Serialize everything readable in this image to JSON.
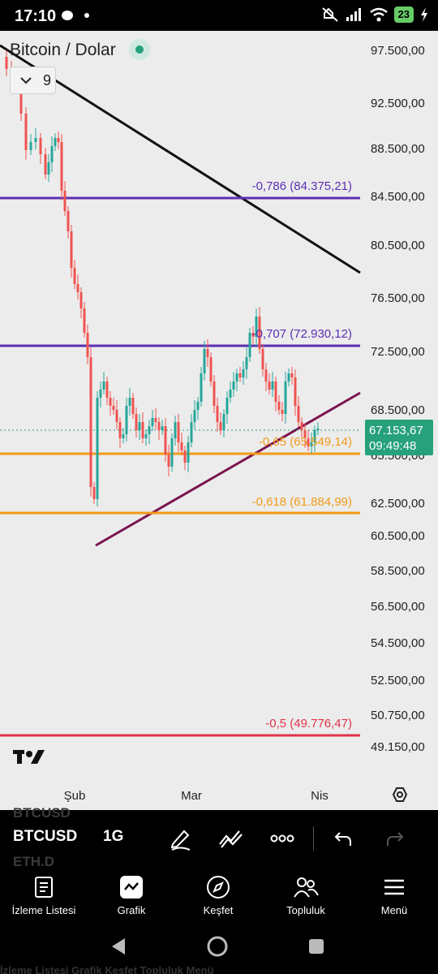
{
  "status_bar": {
    "time": "17:10",
    "battery": "23"
  },
  "symbol": {
    "title": "Bitcoin / Dolar",
    "indicator_count": "9"
  },
  "price_scale": [
    "97.500,00",
    "92.500,00",
    "88.500,00",
    "84.500,00",
    "80.500,00",
    "76.500,00",
    "72.500,00",
    "68.500,00",
    "65.500,00",
    "62.500,00",
    "60.500,00",
    "58.500,00",
    "56.500,00",
    "54.500,00",
    "52.500,00",
    "50.750,00",
    "49.150,00"
  ],
  "current_price": {
    "value": "67.153,67",
    "countdown": "09:49:48"
  },
  "fib_levels": [
    {
      "label": "-0,786 (84.375,21)",
      "color": "#5b2fb3"
    },
    {
      "label": "-0,707 (72.930,12)",
      "color": "#5b2fb3"
    },
    {
      "label": "-0,65 (65.549,14)",
      "color": "#f29a18"
    },
    {
      "label": "-0,618 (61.884,99)",
      "color": "#f29a18"
    },
    {
      "label": "-0,5 (49.776,47)",
      "color": "#e0344a"
    }
  ],
  "time_axis": [
    "Şub",
    "Mar",
    "Nis"
  ],
  "colors": {
    "up": "#26a69a",
    "down": "#ef5350",
    "accent": "#26a17b",
    "trend_down": "#111111",
    "trend_up": "#7a1450"
  },
  "toolbar": {
    "symbol": "BTCUSD",
    "interval": "1G",
    "ghost_above": "BTCUSD",
    "ghost_below": "ETH.D"
  },
  "nav": [
    {
      "label": "İzleme Listesi",
      "icon": "watchlist-icon"
    },
    {
      "label": "Grafik",
      "icon": "chart-icon"
    },
    {
      "label": "Keşfet",
      "icon": "compass-icon"
    },
    {
      "label": "Topluluk",
      "icon": "community-icon"
    },
    {
      "label": "Menü",
      "icon": "menu-icon"
    }
  ],
  "ghost_nav_text": "İzleme Listesi   Grafik   Keşfet   Topluluk   Menü"
}
